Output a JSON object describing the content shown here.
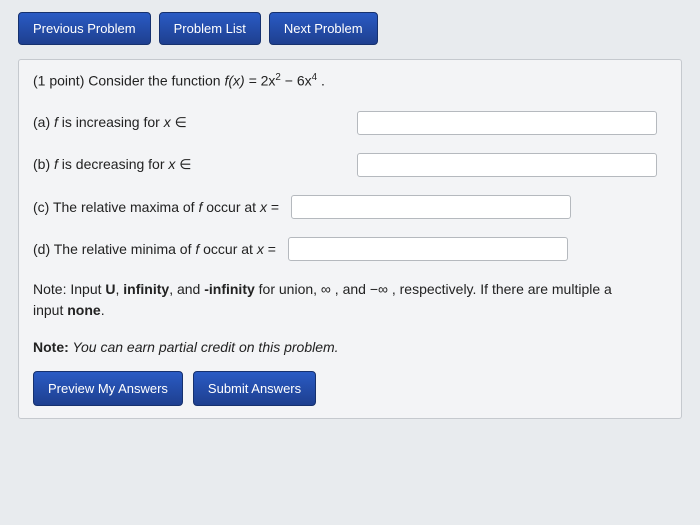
{
  "nav": {
    "previous": "Previous Problem",
    "list": "Problem List",
    "next": "Next Problem"
  },
  "problem": {
    "points_prefix": "(1 point) Consider the function ",
    "function_lhs": "f(x) = ",
    "function_rhs_a": "2x",
    "function_rhs_exp1": "2",
    "function_rhs_mid": " − 6x",
    "function_rhs_exp2": "4",
    "function_end": " ."
  },
  "questions": {
    "a": {
      "prefix": "(a) ",
      "body": " is increasing for ",
      "var": "x",
      "tail": " ∈"
    },
    "b": {
      "prefix": "(b) ",
      "body": " is decreasing for ",
      "var": "x",
      "tail": " ∈"
    },
    "c": {
      "prefix": "(c) The relative maxima of ",
      "body": " occur at ",
      "var": "x",
      "tail": " ="
    },
    "d": {
      "prefix": "(d) The relative minima of ",
      "body": " occur at ",
      "var": "x",
      "tail": " ="
    }
  },
  "fsym": "f",
  "note1": {
    "start": "Note: Input ",
    "u": "U",
    "mid1": ", ",
    "inf": "infinity",
    "mid2": ", and ",
    "ninf": "-infinity",
    "mid3": " for union, ∞ , and −∞ , respectively. If there are multiple a",
    "line2a": "input ",
    "none": "none",
    "line2b": "."
  },
  "note2": {
    "start": "Note:",
    "body": " You can earn partial credit on this problem."
  },
  "actions": {
    "preview": "Preview My Answers",
    "submit": "Submit Answers"
  },
  "colors": {
    "button_bg_top": "#2a5bc4",
    "button_bg_bottom": "#1e3f8f",
    "page_bg": "#e8ebee",
    "box_bg": "#f3f4f6",
    "box_border": "#c5c9ce",
    "input_border": "#b5b9be"
  }
}
